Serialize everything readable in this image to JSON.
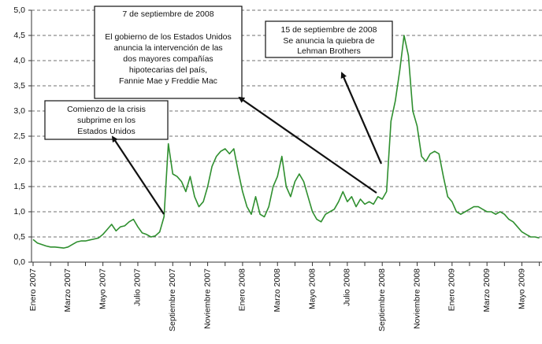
{
  "chart_data": {
    "type": "line",
    "categories": [
      "Enero 2007",
      null,
      null,
      null,
      null,
      null,
      null,
      null,
      "Marzo 2007",
      null,
      null,
      null,
      null,
      null,
      null,
      null,
      "Mayo 2007",
      null,
      null,
      null,
      null,
      null,
      null,
      null,
      "Julio 2007",
      null,
      null,
      null,
      null,
      null,
      null,
      null,
      "Septiembre 2007",
      null,
      null,
      null,
      null,
      null,
      null,
      null,
      "Noviembre 2007",
      null,
      null,
      null,
      null,
      null,
      null,
      null,
      "Enero 2008",
      null,
      null,
      null,
      null,
      null,
      null,
      null,
      "Marzo 2008",
      null,
      null,
      null,
      null,
      null,
      null,
      null,
      "Mayo 2008",
      null,
      null,
      null,
      null,
      null,
      null,
      null,
      "Julio 2008",
      null,
      null,
      null,
      null,
      null,
      null,
      null,
      "Septiembre 2008",
      null,
      null,
      null,
      null,
      null,
      null,
      null,
      "Noviembre 2008",
      null,
      null,
      null,
      null,
      null,
      null,
      null,
      "Enero 2009",
      null,
      null,
      null,
      null,
      null,
      null,
      null,
      "Marzo 2009",
      null,
      null,
      null,
      null,
      null,
      null,
      null,
      "Mayo 2009",
      null,
      null,
      null,
      null
    ],
    "values": [
      0.45,
      0.38,
      0.35,
      0.32,
      0.3,
      0.3,
      0.29,
      0.28,
      0.3,
      0.35,
      0.4,
      0.42,
      0.42,
      0.44,
      0.46,
      0.48,
      0.55,
      0.65,
      0.75,
      0.62,
      0.7,
      0.72,
      0.8,
      0.85,
      0.7,
      0.58,
      0.55,
      0.5,
      0.52,
      0.6,
      0.9,
      2.35,
      1.75,
      1.7,
      1.6,
      1.4,
      1.7,
      1.3,
      1.1,
      1.2,
      1.5,
      1.9,
      2.1,
      2.2,
      2.25,
      2.15,
      2.25,
      1.8,
      1.4,
      1.1,
      0.95,
      1.3,
      0.95,
      0.9,
      1.1,
      1.5,
      1.7,
      2.1,
      1.5,
      1.3,
      1.6,
      1.75,
      1.6,
      1.3,
      1.0,
      0.85,
      0.8,
      0.95,
      1.0,
      1.05,
      1.2,
      1.4,
      1.2,
      1.3,
      1.1,
      1.25,
      1.15,
      1.2,
      1.15,
      1.3,
      1.25,
      1.4,
      2.8,
      3.2,
      3.8,
      4.5,
      4.1,
      3.0,
      2.7,
      2.1,
      2.0,
      2.15,
      2.2,
      2.15,
      1.7,
      1.3,
      1.2,
      1.0,
      0.95,
      1.0,
      1.05,
      1.1,
      1.1,
      1.05,
      1.0,
      1.0,
      0.95,
      1.0,
      0.95,
      0.85,
      0.8,
      0.7,
      0.6,
      0.55,
      0.5,
      0.5,
      0.48
    ],
    "color": "#2f8f2f",
    "ylim": [
      0,
      5
    ],
    "yticks": [
      {
        "value": 0,
        "label": "0,0"
      },
      {
        "value": 0.5,
        "label": "0,5"
      },
      {
        "value": 1,
        "label": "1,0"
      },
      {
        "value": 1.5,
        "label": "1,5"
      },
      {
        "value": 2,
        "label": "2,0"
      },
      {
        "value": 2.5,
        "label": "2,5"
      },
      {
        "value": 3,
        "label": "3,0"
      },
      {
        "value": 3.5,
        "label": "3,5"
      },
      {
        "value": 4,
        "label": "4,0"
      },
      {
        "value": 4.5,
        "label": "4,5"
      },
      {
        "value": 5,
        "label": "5,0"
      }
    ],
    "grid": true,
    "annotations": [
      {
        "lines": [
          "7 de septiembre de 2008",
          "El gobierno de los Estados Unidos",
          "anuncia la intervención de las",
          "dos mayores compañías",
          "hipotecarias del país,",
          "Fannie Mae y Freddie Mac"
        ]
      },
      {
        "lines": [
          "15 de septiembre de 2008",
          "Se anuncia la quiebra de",
          "Lehman Brothers"
        ]
      },
      {
        "lines": [
          "Comienzo de la crisis",
          "subprime en los",
          "Estados Unidos"
        ]
      }
    ]
  }
}
